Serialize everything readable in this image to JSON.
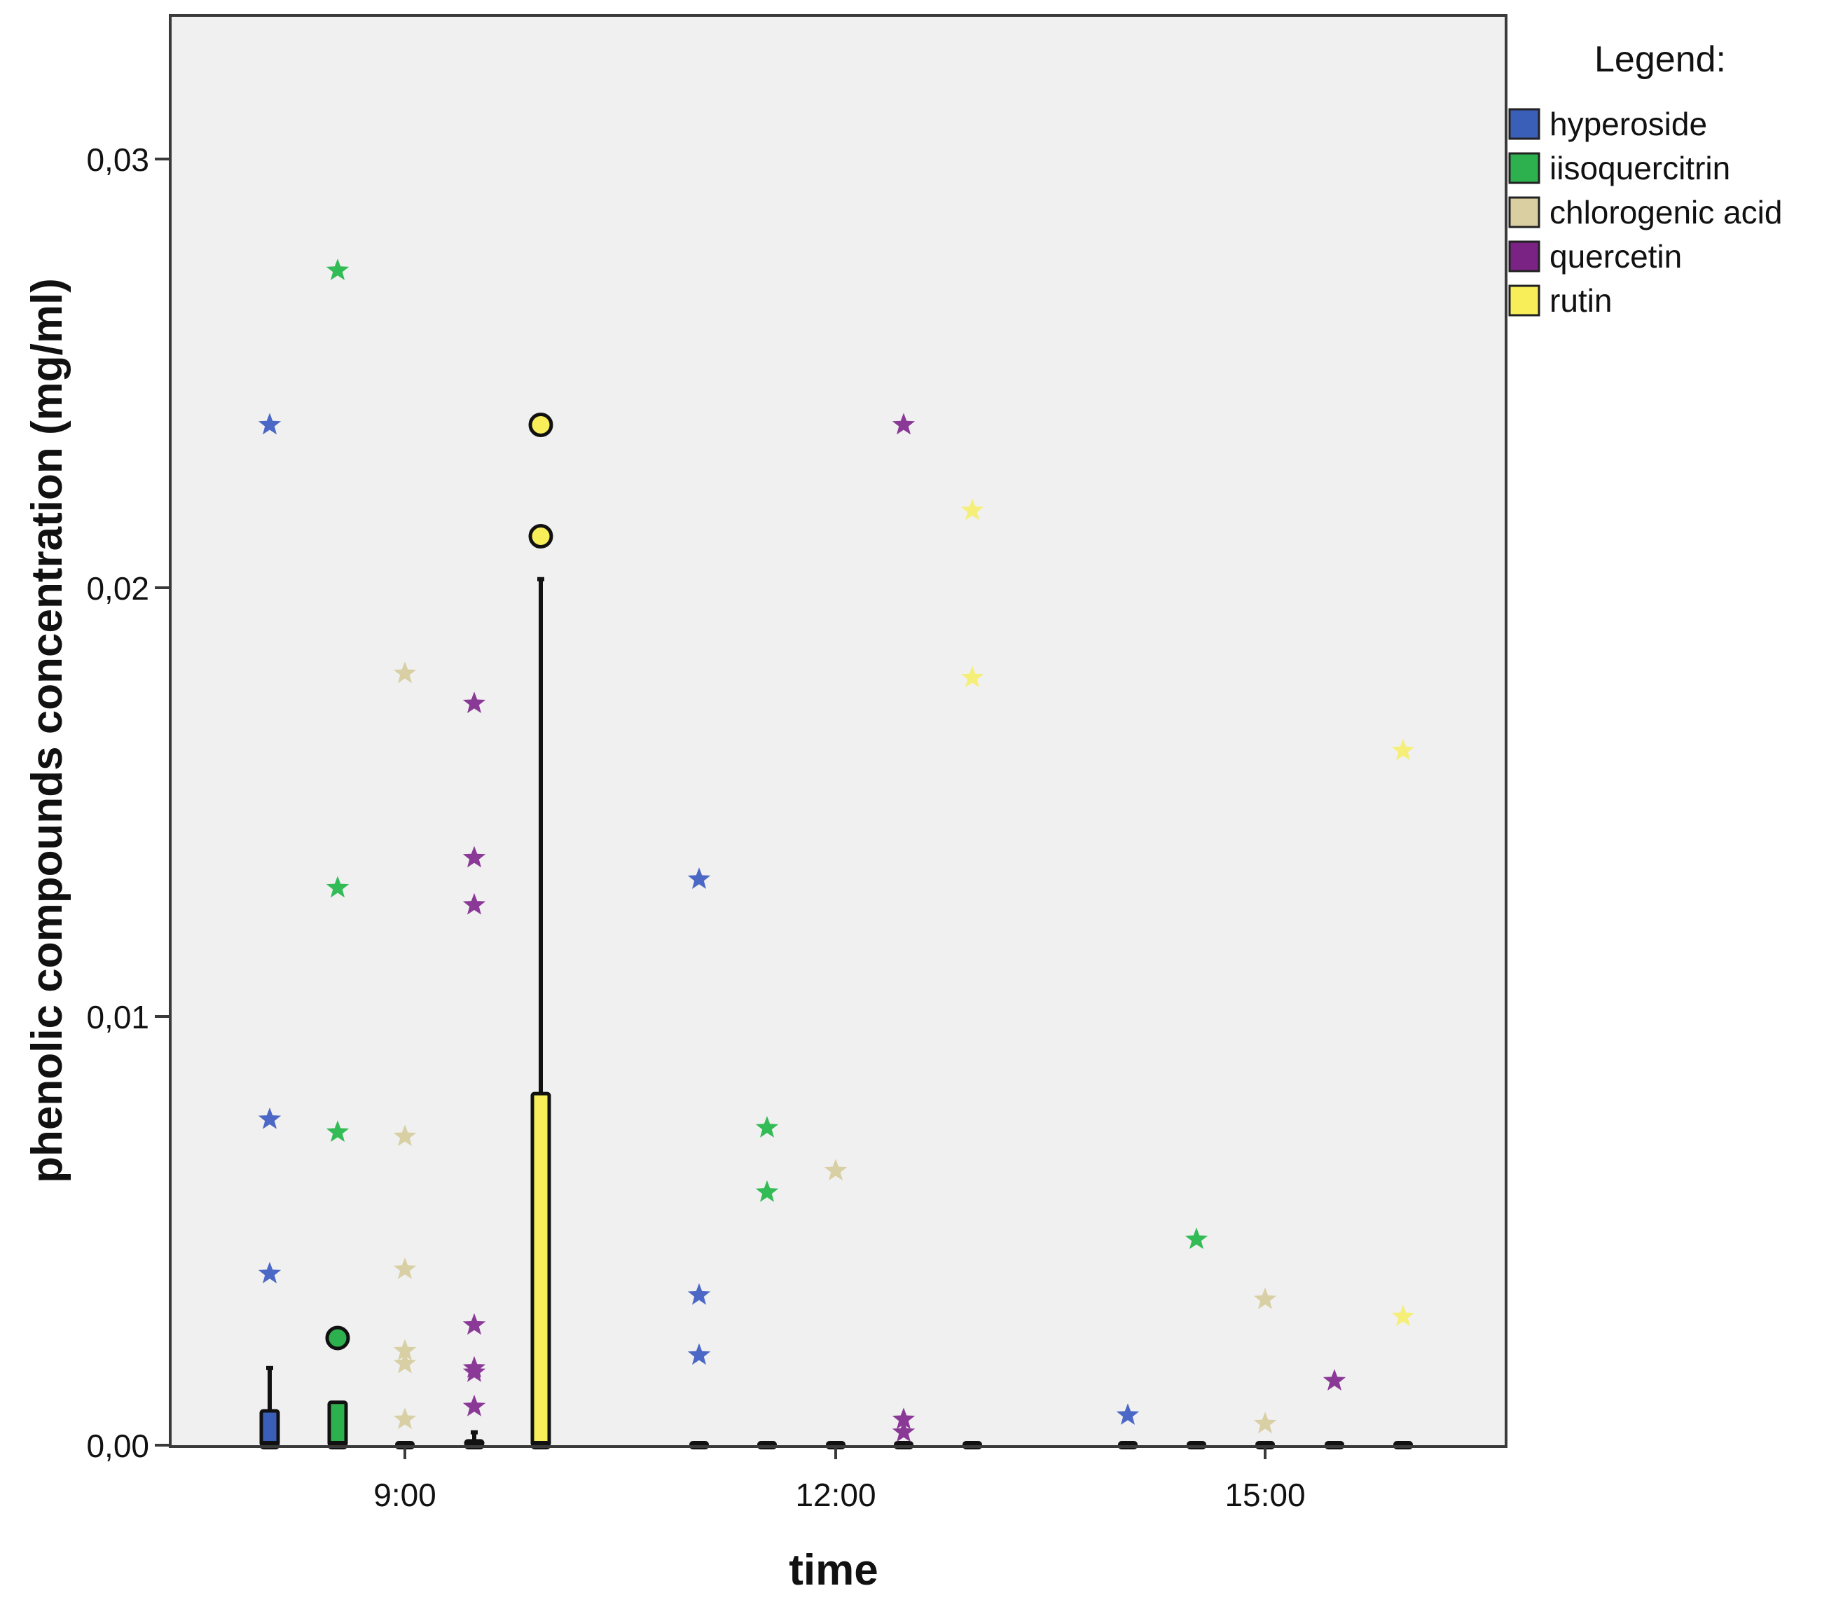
{
  "chart_data": {
    "type": "boxplot",
    "xlabel": "time",
    "ylabel": "phenolic compounds concentration (mg/ml)",
    "ylim": [
      0,
      0.0335
    ],
    "yticks": [
      {
        "value": 0.0,
        "label": "0,00"
      },
      {
        "value": 0.01,
        "label": "0,01"
      },
      {
        "value": 0.02,
        "label": "0,02"
      },
      {
        "value": 0.03,
        "label": "0,03"
      }
    ],
    "categories": [
      "8:00",
      "9:00",
      "10:00",
      "11:00",
      "12:00",
      "13:00",
      "14:00",
      "15:00",
      "16:00"
    ],
    "xtick_labels": [
      {
        "category": "9:00",
        "label": "9:00"
      },
      {
        "category": "12:00",
        "label": "12:00"
      },
      {
        "category": "15:00",
        "label": "15:00"
      }
    ],
    "legend": {
      "title": "Legend:",
      "position": "right",
      "entries": [
        {
          "name": "hyperoside",
          "color": "#3a5fb8"
        },
        {
          "name": "iisoquercitrin",
          "color": "#2db14f"
        },
        {
          "name": "chlorogenic acid",
          "color": "#d9cfa0"
        },
        {
          "name": "quercetin",
          "color": "#7b2385"
        },
        {
          "name": "rutin",
          "color": "#f7ee5a"
        }
      ]
    },
    "series": [
      {
        "name": "hyperoside",
        "color": "#3a5fb8",
        "star_color": "#4b68c6",
        "boxes": [
          {
            "category": "8:00",
            "q1": 0.0,
            "median": 0.0,
            "q3": 0.0008,
            "whisker_low": 0.0,
            "whisker_high": 0.0018
          },
          {
            "category": "11:00",
            "q1": 0.0,
            "median": 0.0,
            "q3": 0.0,
            "whisker_low": 0.0,
            "whisker_high": 0.0
          },
          {
            "category": "14:00",
            "q1": 0.0,
            "median": 0.0,
            "q3": 0.0,
            "whisker_low": 0.0,
            "whisker_high": 0.0
          }
        ],
        "outliers": [],
        "extremes": [
          {
            "category": "8:00",
            "value": 0.0238
          },
          {
            "category": "8:00",
            "value": 0.0076
          },
          {
            "category": "8:00",
            "value": 0.004
          },
          {
            "category": "11:00",
            "value": 0.0132
          },
          {
            "category": "11:00",
            "value": 0.0035
          },
          {
            "category": "11:00",
            "value": 0.0021
          },
          {
            "category": "14:00",
            "value": 0.0007
          }
        ]
      },
      {
        "name": "iisoquercitrin",
        "color": "#2db14f",
        "star_color": "#33bb55",
        "boxes": [
          {
            "category": "8:00",
            "q1": 0.0,
            "median": 0.0,
            "q3": 0.001,
            "whisker_low": 0.0,
            "whisker_high": 0.001
          },
          {
            "category": "11:00",
            "q1": 0.0,
            "median": 0.0,
            "q3": 0.0,
            "whisker_low": 0.0,
            "whisker_high": 0.0
          },
          {
            "category": "14:00",
            "q1": 0.0,
            "median": 0.0,
            "q3": 0.0,
            "whisker_low": 0.0,
            "whisker_high": 0.0
          }
        ],
        "outliers": [
          {
            "category": "8:00",
            "value": 0.0025
          }
        ],
        "extremes": [
          {
            "category": "8:00",
            "value": 0.0274
          },
          {
            "category": "8:00",
            "value": 0.013
          },
          {
            "category": "8:00",
            "value": 0.0073
          },
          {
            "category": "11:00",
            "value": 0.0074
          },
          {
            "category": "11:00",
            "value": 0.0059
          },
          {
            "category": "14:00",
            "value": 0.0048
          }
        ]
      },
      {
        "name": "chlorogenic acid",
        "color": "#d9cfa0",
        "star_color": "#d8d0a4",
        "boxes": [
          {
            "category": "9:00",
            "q1": 0.0,
            "median": 0.0,
            "q3": 0.0,
            "whisker_low": 0.0,
            "whisker_high": 0.0
          },
          {
            "category": "12:00",
            "q1": 0.0,
            "median": 0.0,
            "q3": 0.0,
            "whisker_low": 0.0,
            "whisker_high": 0.0
          },
          {
            "category": "15:00",
            "q1": 0.0,
            "median": 0.0,
            "q3": 0.0,
            "whisker_low": 0.0,
            "whisker_high": 0.0
          }
        ],
        "outliers": [],
        "extremes": [
          {
            "category": "9:00",
            "value": 0.018
          },
          {
            "category": "9:00",
            "value": 0.0072
          },
          {
            "category": "9:00",
            "value": 0.0041
          },
          {
            "category": "9:00",
            "value": 0.0022
          },
          {
            "category": "9:00",
            "value": 0.0019
          },
          {
            "category": "9:00",
            "value": 0.0006
          },
          {
            "category": "12:00",
            "value": 0.0064
          },
          {
            "category": "15:00",
            "value": 0.0034
          },
          {
            "category": "15:00",
            "value": 0.0005
          }
        ]
      },
      {
        "name": "quercetin",
        "color": "#7b2385",
        "star_color": "#8a3a96",
        "boxes": [
          {
            "category": "9:00",
            "q1": 0.0,
            "median": 0.0,
            "q3": 0.0001,
            "whisker_low": 0.0,
            "whisker_high": 0.0003
          },
          {
            "category": "12:00",
            "q1": 0.0,
            "median": 0.0,
            "q3": 0.0,
            "whisker_low": 0.0,
            "whisker_high": 0.0
          },
          {
            "category": "15:00",
            "q1": 0.0,
            "median": 0.0,
            "q3": 0.0,
            "whisker_low": 0.0,
            "whisker_high": 0.0
          }
        ],
        "outliers": [],
        "extremes": [
          {
            "category": "9:00",
            "value": 0.0173
          },
          {
            "category": "9:00",
            "value": 0.0137
          },
          {
            "category": "9:00",
            "value": 0.0126
          },
          {
            "category": "9:00",
            "value": 0.0028
          },
          {
            "category": "9:00",
            "value": 0.0018
          },
          {
            "category": "9:00",
            "value": 0.0017
          },
          {
            "category": "9:00",
            "value": 0.0009
          },
          {
            "category": "12:00",
            "value": 0.0238
          },
          {
            "category": "12:00",
            "value": 0.0006
          },
          {
            "category": "12:00",
            "value": 0.0003
          },
          {
            "category": "15:00",
            "value": 0.0015
          }
        ]
      },
      {
        "name": "rutin",
        "color": "#f7ee5a",
        "star_color": "#f5ef7a",
        "boxes": [
          {
            "category": "10:00",
            "q1": 0.0,
            "median": 0.0,
            "q3": 0.0082,
            "whisker_low": 0.0,
            "whisker_high": 0.0202
          },
          {
            "category": "13:00",
            "q1": 0.0,
            "median": 0.0,
            "q3": 0.0,
            "whisker_low": 0.0,
            "whisker_high": 0.0
          },
          {
            "category": "16:00",
            "q1": 0.0,
            "median": 0.0,
            "q3": 0.0,
            "whisker_low": 0.0,
            "whisker_high": 0.0
          }
        ],
        "outliers": [
          {
            "category": "10:00",
            "value": 0.0238
          },
          {
            "category": "10:00",
            "value": 0.0212
          }
        ],
        "extremes": [
          {
            "category": "13:00",
            "value": 0.0218
          },
          {
            "category": "13:00",
            "value": 0.0179
          },
          {
            "category": "16:00",
            "value": 0.0162
          },
          {
            "category": "16:00",
            "value": 0.003
          }
        ]
      }
    ]
  }
}
